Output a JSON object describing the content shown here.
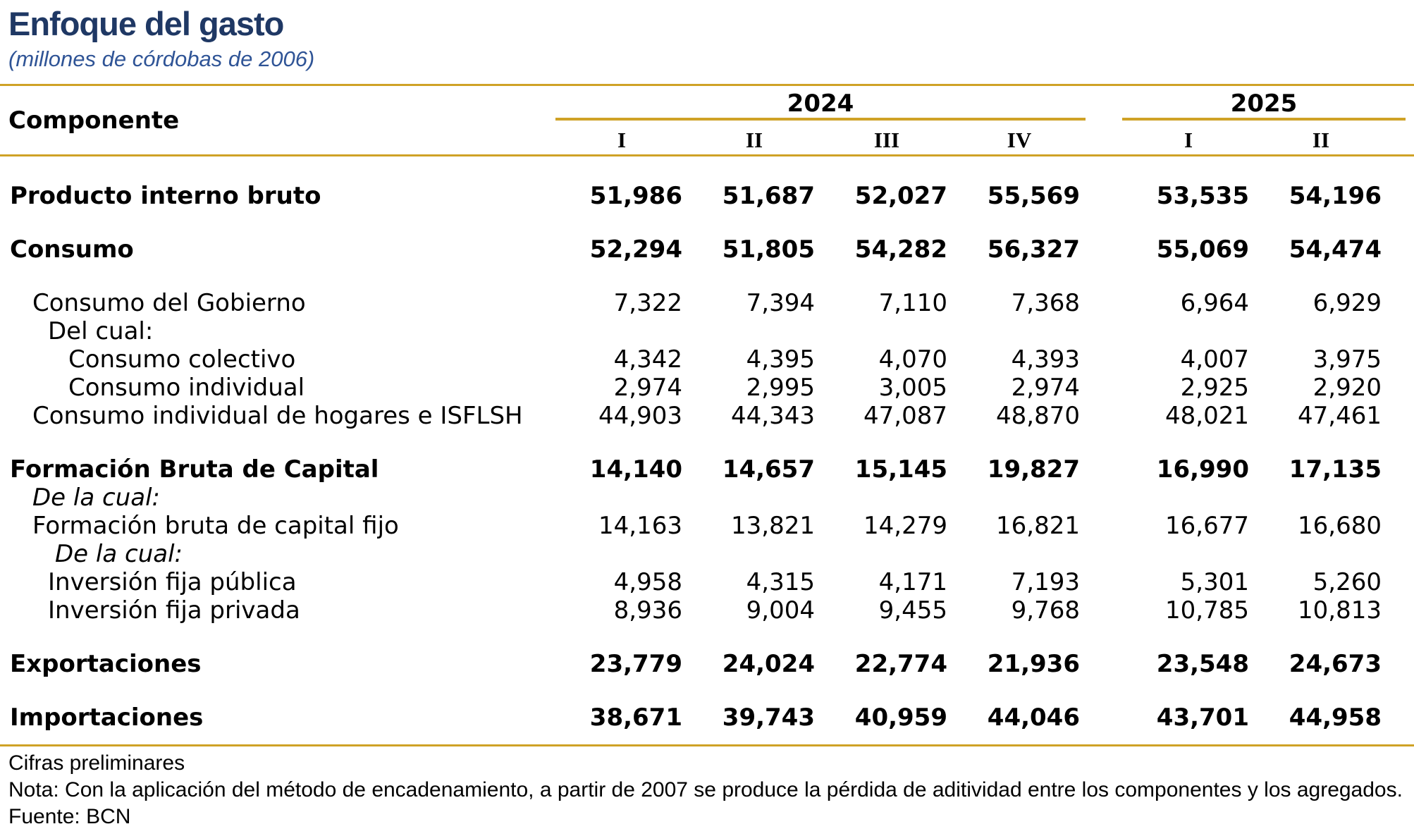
{
  "header": {
    "title": "Enfoque del gasto",
    "subtitle": "(millones de córdobas de 2006)"
  },
  "table": {
    "component_header": "Componente",
    "year_groups": [
      {
        "year": "2024",
        "quarters": [
          "I",
          "II",
          "III",
          "IV"
        ]
      },
      {
        "year": "2025",
        "quarters": [
          "I",
          "II"
        ]
      }
    ],
    "rows": [
      {
        "label": "Producto interno bruto",
        "style": "bold",
        "level": 0,
        "spacer": true,
        "values": [
          "51,986",
          "51,687",
          "52,027",
          "55,569",
          "53,535",
          "54,196"
        ]
      },
      {
        "label": "Consumo",
        "style": "bold",
        "level": 0,
        "spacer": true,
        "values": [
          "52,294",
          "51,805",
          "54,282",
          "56,327",
          "55,069",
          "54,474"
        ]
      },
      {
        "label": "Consumo del Gobierno",
        "style": "normal",
        "level": 1,
        "spacer": true,
        "values": [
          "7,322",
          "7,394",
          "7,110",
          "7,368",
          "6,964",
          "6,929"
        ]
      },
      {
        "label": "Del cual:",
        "style": "normal",
        "level": 2,
        "spacer": false,
        "values": []
      },
      {
        "label": "Consumo colectivo",
        "style": "normal",
        "level": 3,
        "spacer": false,
        "values": [
          "4,342",
          "4,395",
          "4,070",
          "4,393",
          "4,007",
          "3,975"
        ]
      },
      {
        "label": "Consumo individual",
        "style": "normal",
        "level": 3,
        "spacer": false,
        "values": [
          "2,974",
          "2,995",
          "3,005",
          "2,974",
          "2,925",
          "2,920"
        ]
      },
      {
        "label": "Consumo individual de hogares e ISFLSH",
        "style": "normal",
        "level": 1,
        "spacer": false,
        "values": [
          "44,903",
          "44,343",
          "47,087",
          "48,870",
          "48,021",
          "47,461"
        ]
      },
      {
        "label": "Formación Bruta de Capital",
        "style": "bold",
        "level": 0,
        "spacer": true,
        "values": [
          "14,140",
          "14,657",
          "15,145",
          "19,827",
          "16,990",
          "17,135"
        ]
      },
      {
        "label": "De la cual:",
        "style": "italic",
        "level": 1,
        "spacer": false,
        "values": []
      },
      {
        "label": "Formación bruta de capital fijo",
        "style": "normal",
        "level": 1,
        "spacer": false,
        "values": [
          "14,163",
          "13,821",
          "14,279",
          "16,821",
          "16,677",
          "16,680"
        ]
      },
      {
        "label": "De la cual:",
        "style": "italic",
        "level": "2b",
        "spacer": false,
        "values": []
      },
      {
        "label": "Inversión fija pública",
        "style": "normal",
        "level": 2,
        "spacer": false,
        "values": [
          "4,958",
          "4,315",
          "4,171",
          "7,193",
          "5,301",
          "5,260"
        ]
      },
      {
        "label": "Inversión fija privada",
        "style": "normal",
        "level": 2,
        "spacer": false,
        "values": [
          "8,936",
          "9,004",
          "9,455",
          "9,768",
          "10,785",
          "10,813"
        ]
      },
      {
        "label": "Exportaciones",
        "style": "bold",
        "level": 0,
        "spacer": true,
        "values": [
          "23,779",
          "24,024",
          "22,774",
          "21,936",
          "23,548",
          "24,673"
        ]
      },
      {
        "label": "Importaciones",
        "style": "bold",
        "level": 0,
        "spacer": true,
        "values": [
          "38,671",
          "39,743",
          "40,959",
          "44,046",
          "43,701",
          "44,958"
        ]
      }
    ]
  },
  "footer": {
    "line1": "Cifras preliminares",
    "line2": "Nota: Con la aplicación del método de encadenamiento, a partir de 2007 se produce la pérdida de aditividad entre los componentes y los agregados.",
    "line3": "Fuente: BCN"
  },
  "colors": {
    "title_navy": "#1F3864",
    "subtitle_blue": "#2F5496",
    "gold": "#CFA226",
    "text": "#000000"
  }
}
